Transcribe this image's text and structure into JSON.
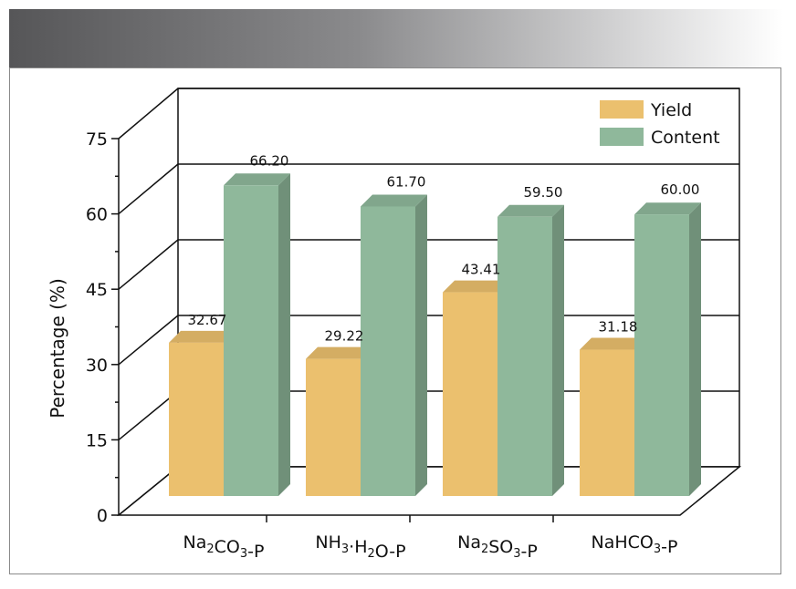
{
  "chart_data": {
    "type": "bar",
    "title": "",
    "xlabel": "",
    "ylabel": "Percentage (%)",
    "ylim": [
      0,
      75
    ],
    "yticks": [
      0,
      15,
      30,
      45,
      60,
      75
    ],
    "categories": [
      {
        "base": "Na",
        "parts": [
          {
            "t": "Na"
          },
          {
            "t": "2",
            "sub": true
          },
          {
            "t": "CO"
          },
          {
            "t": "3",
            "sub": true
          },
          {
            "t": "-P"
          }
        ]
      },
      {
        "base": "NH",
        "parts": [
          {
            "t": "NH"
          },
          {
            "t": "3",
            "sub": true
          },
          {
            "t": "·H"
          },
          {
            "t": "2",
            "sub": true
          },
          {
            "t": "O-P"
          }
        ]
      },
      {
        "base": "Na",
        "parts": [
          {
            "t": "Na"
          },
          {
            "t": "2",
            "sub": true
          },
          {
            "t": "SO"
          },
          {
            "t": "3",
            "sub": true
          },
          {
            "t": "-P"
          }
        ]
      },
      {
        "base": "NaHCO",
        "parts": [
          {
            "t": "NaHCO"
          },
          {
            "t": "3",
            "sub": true
          },
          {
            "t": "-P"
          }
        ]
      }
    ],
    "series": [
      {
        "name": "Yield",
        "color": "#ebc06e",
        "values": [
          32.67,
          29.22,
          43.41,
          31.18
        ],
        "labels": [
          "32.67",
          "29.22",
          "43.41",
          "31.18"
        ]
      },
      {
        "name": "Content",
        "color": "#8fb89b",
        "values": [
          66.2,
          61.7,
          59.5,
          60.0
        ],
        "labels": [
          "66.20",
          "61.70",
          "59.50",
          "60.00"
        ]
      }
    ],
    "legend": "top-right",
    "grid": true
  }
}
